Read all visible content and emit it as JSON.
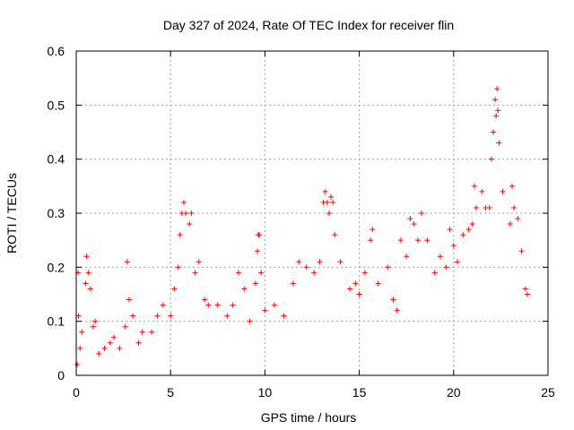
{
  "chart_data": {
    "type": "scatter",
    "title": "Day 327 of 2024, Rate Of TEC Index for receiver flin",
    "xlabel": "GPS time / hours",
    "ylabel": "ROTI / TECUs",
    "xlim": [
      0,
      25
    ],
    "ylim": [
      0,
      0.6
    ],
    "xticks": [
      0,
      5,
      10,
      15,
      20,
      25
    ],
    "yticks": [
      0,
      0.1,
      0.2,
      0.3,
      0.4,
      0.5,
      0.6
    ],
    "xtick_labels": [
      "0",
      "5",
      "10",
      "15",
      "20",
      "25"
    ],
    "ytick_labels": [
      "0",
      "0.1",
      "0.2",
      "0.3",
      "0.4",
      "0.5",
      "0.6"
    ],
    "grid": true,
    "marker": "+",
    "marker_color": "#ff0000",
    "series": [
      {
        "name": "ROTI",
        "points": [
          [
            0.05,
            0.02
          ],
          [
            0.1,
            0.19
          ],
          [
            0.12,
            0.11
          ],
          [
            0.2,
            0.05
          ],
          [
            0.3,
            0.08
          ],
          [
            0.5,
            0.17
          ],
          [
            0.55,
            0.22
          ],
          [
            0.65,
            0.19
          ],
          [
            0.75,
            0.16
          ],
          [
            0.9,
            0.09
          ],
          [
            1.0,
            0.1
          ],
          [
            1.2,
            0.04
          ],
          [
            1.5,
            0.05
          ],
          [
            1.8,
            0.06
          ],
          [
            2.0,
            0.07
          ],
          [
            2.3,
            0.05
          ],
          [
            2.6,
            0.09
          ],
          [
            2.7,
            0.21
          ],
          [
            2.8,
            0.14
          ],
          [
            3.0,
            0.11
          ],
          [
            3.3,
            0.06
          ],
          [
            3.5,
            0.08
          ],
          [
            4.0,
            0.08
          ],
          [
            4.3,
            0.11
          ],
          [
            4.6,
            0.13
          ],
          [
            5.0,
            0.11
          ],
          [
            5.2,
            0.16
          ],
          [
            5.4,
            0.2
          ],
          [
            5.5,
            0.26
          ],
          [
            5.6,
            0.3
          ],
          [
            5.7,
            0.32
          ],
          [
            5.8,
            0.3
          ],
          [
            6.0,
            0.28
          ],
          [
            6.1,
            0.3
          ],
          [
            6.3,
            0.19
          ],
          [
            6.5,
            0.21
          ],
          [
            6.8,
            0.14
          ],
          [
            7.0,
            0.13
          ],
          [
            7.5,
            0.13
          ],
          [
            8.0,
            0.11
          ],
          [
            8.3,
            0.13
          ],
          [
            8.6,
            0.19
          ],
          [
            8.9,
            0.16
          ],
          [
            9.2,
            0.1
          ],
          [
            9.5,
            0.17
          ],
          [
            9.6,
            0.23
          ],
          [
            9.65,
            0.26
          ],
          [
            9.7,
            0.26
          ],
          [
            9.8,
            0.19
          ],
          [
            10.0,
            0.12
          ],
          [
            10.5,
            0.13
          ],
          [
            11.0,
            0.11
          ],
          [
            11.5,
            0.17
          ],
          [
            11.8,
            0.21
          ],
          [
            12.2,
            0.2
          ],
          [
            12.6,
            0.19
          ],
          [
            12.9,
            0.21
          ],
          [
            13.1,
            0.32
          ],
          [
            13.2,
            0.34
          ],
          [
            13.3,
            0.32
          ],
          [
            13.4,
            0.3
          ],
          [
            13.5,
            0.33
          ],
          [
            13.6,
            0.32
          ],
          [
            13.7,
            0.26
          ],
          [
            14.0,
            0.21
          ],
          [
            14.5,
            0.16
          ],
          [
            14.8,
            0.17
          ],
          [
            15.0,
            0.15
          ],
          [
            15.3,
            0.19
          ],
          [
            15.6,
            0.25
          ],
          [
            15.7,
            0.27
          ],
          [
            16.0,
            0.17
          ],
          [
            16.5,
            0.2
          ],
          [
            16.8,
            0.14
          ],
          [
            17.0,
            0.12
          ],
          [
            17.2,
            0.25
          ],
          [
            17.5,
            0.22
          ],
          [
            17.7,
            0.29
          ],
          [
            17.9,
            0.28
          ],
          [
            18.1,
            0.25
          ],
          [
            18.3,
            0.3
          ],
          [
            18.6,
            0.25
          ],
          [
            19.0,
            0.19
          ],
          [
            19.3,
            0.22
          ],
          [
            19.6,
            0.2
          ],
          [
            19.8,
            0.27
          ],
          [
            20.0,
            0.24
          ],
          [
            20.2,
            0.21
          ],
          [
            20.5,
            0.26
          ],
          [
            20.8,
            0.27
          ],
          [
            21.0,
            0.28
          ],
          [
            21.1,
            0.35
          ],
          [
            21.2,
            0.31
          ],
          [
            21.5,
            0.34
          ],
          [
            21.7,
            0.31
          ],
          [
            21.9,
            0.31
          ],
          [
            22.0,
            0.4
          ],
          [
            22.1,
            0.45
          ],
          [
            22.2,
            0.51
          ],
          [
            22.25,
            0.48
          ],
          [
            22.3,
            0.53
          ],
          [
            22.35,
            0.49
          ],
          [
            22.4,
            0.43
          ],
          [
            22.6,
            0.34
          ],
          [
            23.0,
            0.28
          ],
          [
            23.1,
            0.35
          ],
          [
            23.2,
            0.31
          ],
          [
            23.4,
            0.29
          ],
          [
            23.6,
            0.23
          ],
          [
            23.8,
            0.16
          ],
          [
            23.9,
            0.15
          ]
        ]
      }
    ]
  }
}
